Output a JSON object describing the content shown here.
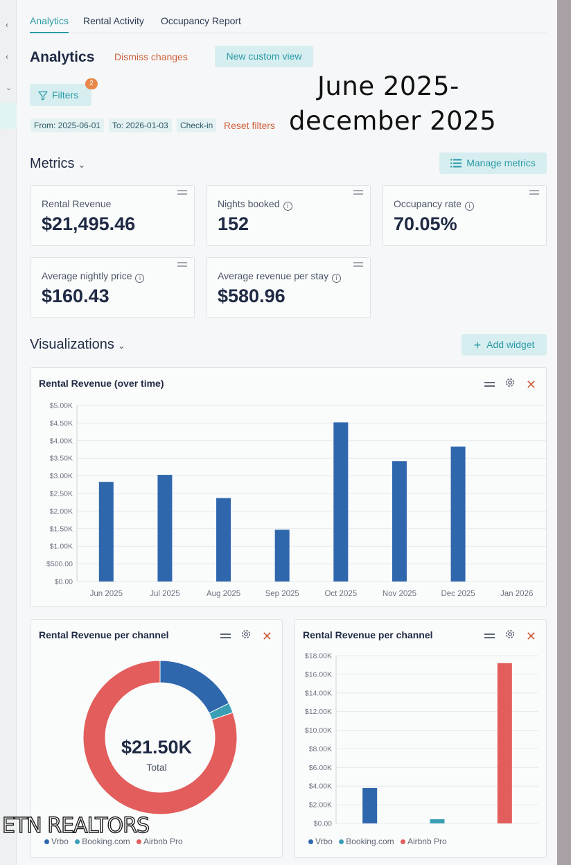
{
  "tabs": [
    "Analytics",
    "Rental Activity",
    "Occupancy Report"
  ],
  "header": {
    "title": "Analytics",
    "dismiss_label": "Dismiss changes",
    "new_view_label": "New custom view"
  },
  "filters": {
    "button_label": "Filters",
    "count": "2",
    "chips": [
      "From: 2025-06-01",
      "To: 2026-01-03",
      "Check-in"
    ],
    "reset_label": "Reset filters"
  },
  "annotation": {
    "line1": "June 2025-",
    "line2": "december 2025"
  },
  "metrics": {
    "title": "Metrics",
    "manage_label": "Manage metrics",
    "cards": [
      {
        "label": "Rental Revenue",
        "value": "$21,495.46",
        "info": false
      },
      {
        "label": "Nights booked",
        "value": "152",
        "info": true
      },
      {
        "label": "Occupancy rate",
        "value": "70.05%",
        "info": true
      },
      {
        "label": "Average nightly price",
        "value": "$160.43",
        "info": true
      },
      {
        "label": "Average revenue per stay",
        "value": "$580.96",
        "info": true
      }
    ]
  },
  "visualizations": {
    "title": "Visualizations",
    "add_label": "Add widget",
    "revenue_over_time_title": "Rental Revenue (over time)",
    "per_channel_title": "Rental Revenue per channel",
    "donut_total": "$21.50K",
    "donut_total_label": "Total",
    "legend": [
      "Vrbo",
      "Booking.com",
      "Airbnb Pro"
    ]
  },
  "colors": {
    "accent": "#2a9aa6",
    "danger": "#d0603d",
    "vrbo": "#2f67ad",
    "booking": "#3a9fb4",
    "airbnb": "#e25d5b"
  },
  "watermark": "ETN REALTORS",
  "chart_data": [
    {
      "type": "bar",
      "title": "Rental Revenue (over time)",
      "categories": [
        "Jun 2025",
        "Jul 2025",
        "Aug 2025",
        "Sep 2025",
        "Oct 2025",
        "Nov 2025",
        "Dec 2025",
        "Jan 2026"
      ],
      "values": [
        2830,
        3030,
        2370,
        1470,
        4520,
        3420,
        3830,
        0
      ],
      "yticks": [
        "$0.00",
        "$500.00",
        "$1.00K",
        "$1.50K",
        "$2.00K",
        "$2.50K",
        "$3.00K",
        "$3.50K",
        "$4.00K",
        "$4.50K",
        "$5.00K"
      ],
      "ylim": [
        0,
        5000
      ],
      "grid": true
    },
    {
      "type": "pie",
      "title": "Rental Revenue per channel",
      "categories": [
        "Vrbo",
        "Booking.com",
        "Airbnb Pro"
      ],
      "values": [
        3800,
        450,
        17250
      ],
      "legend": "bottom"
    },
    {
      "type": "bar",
      "title": "Rental Revenue per channel",
      "categories": [
        "Vrbo",
        "Booking.com",
        "Airbnb Pro"
      ],
      "values": [
        3800,
        450,
        17200
      ],
      "yticks": [
        "$0.00",
        "$2.00K",
        "$4.00K",
        "$6.00K",
        "$8.00K",
        "$10.00K",
        "$12.00K",
        "$14.00K",
        "$16.00K",
        "$18.00K"
      ],
      "ylim": [
        0,
        18000
      ],
      "grid": true,
      "legend": "bottom"
    }
  ]
}
